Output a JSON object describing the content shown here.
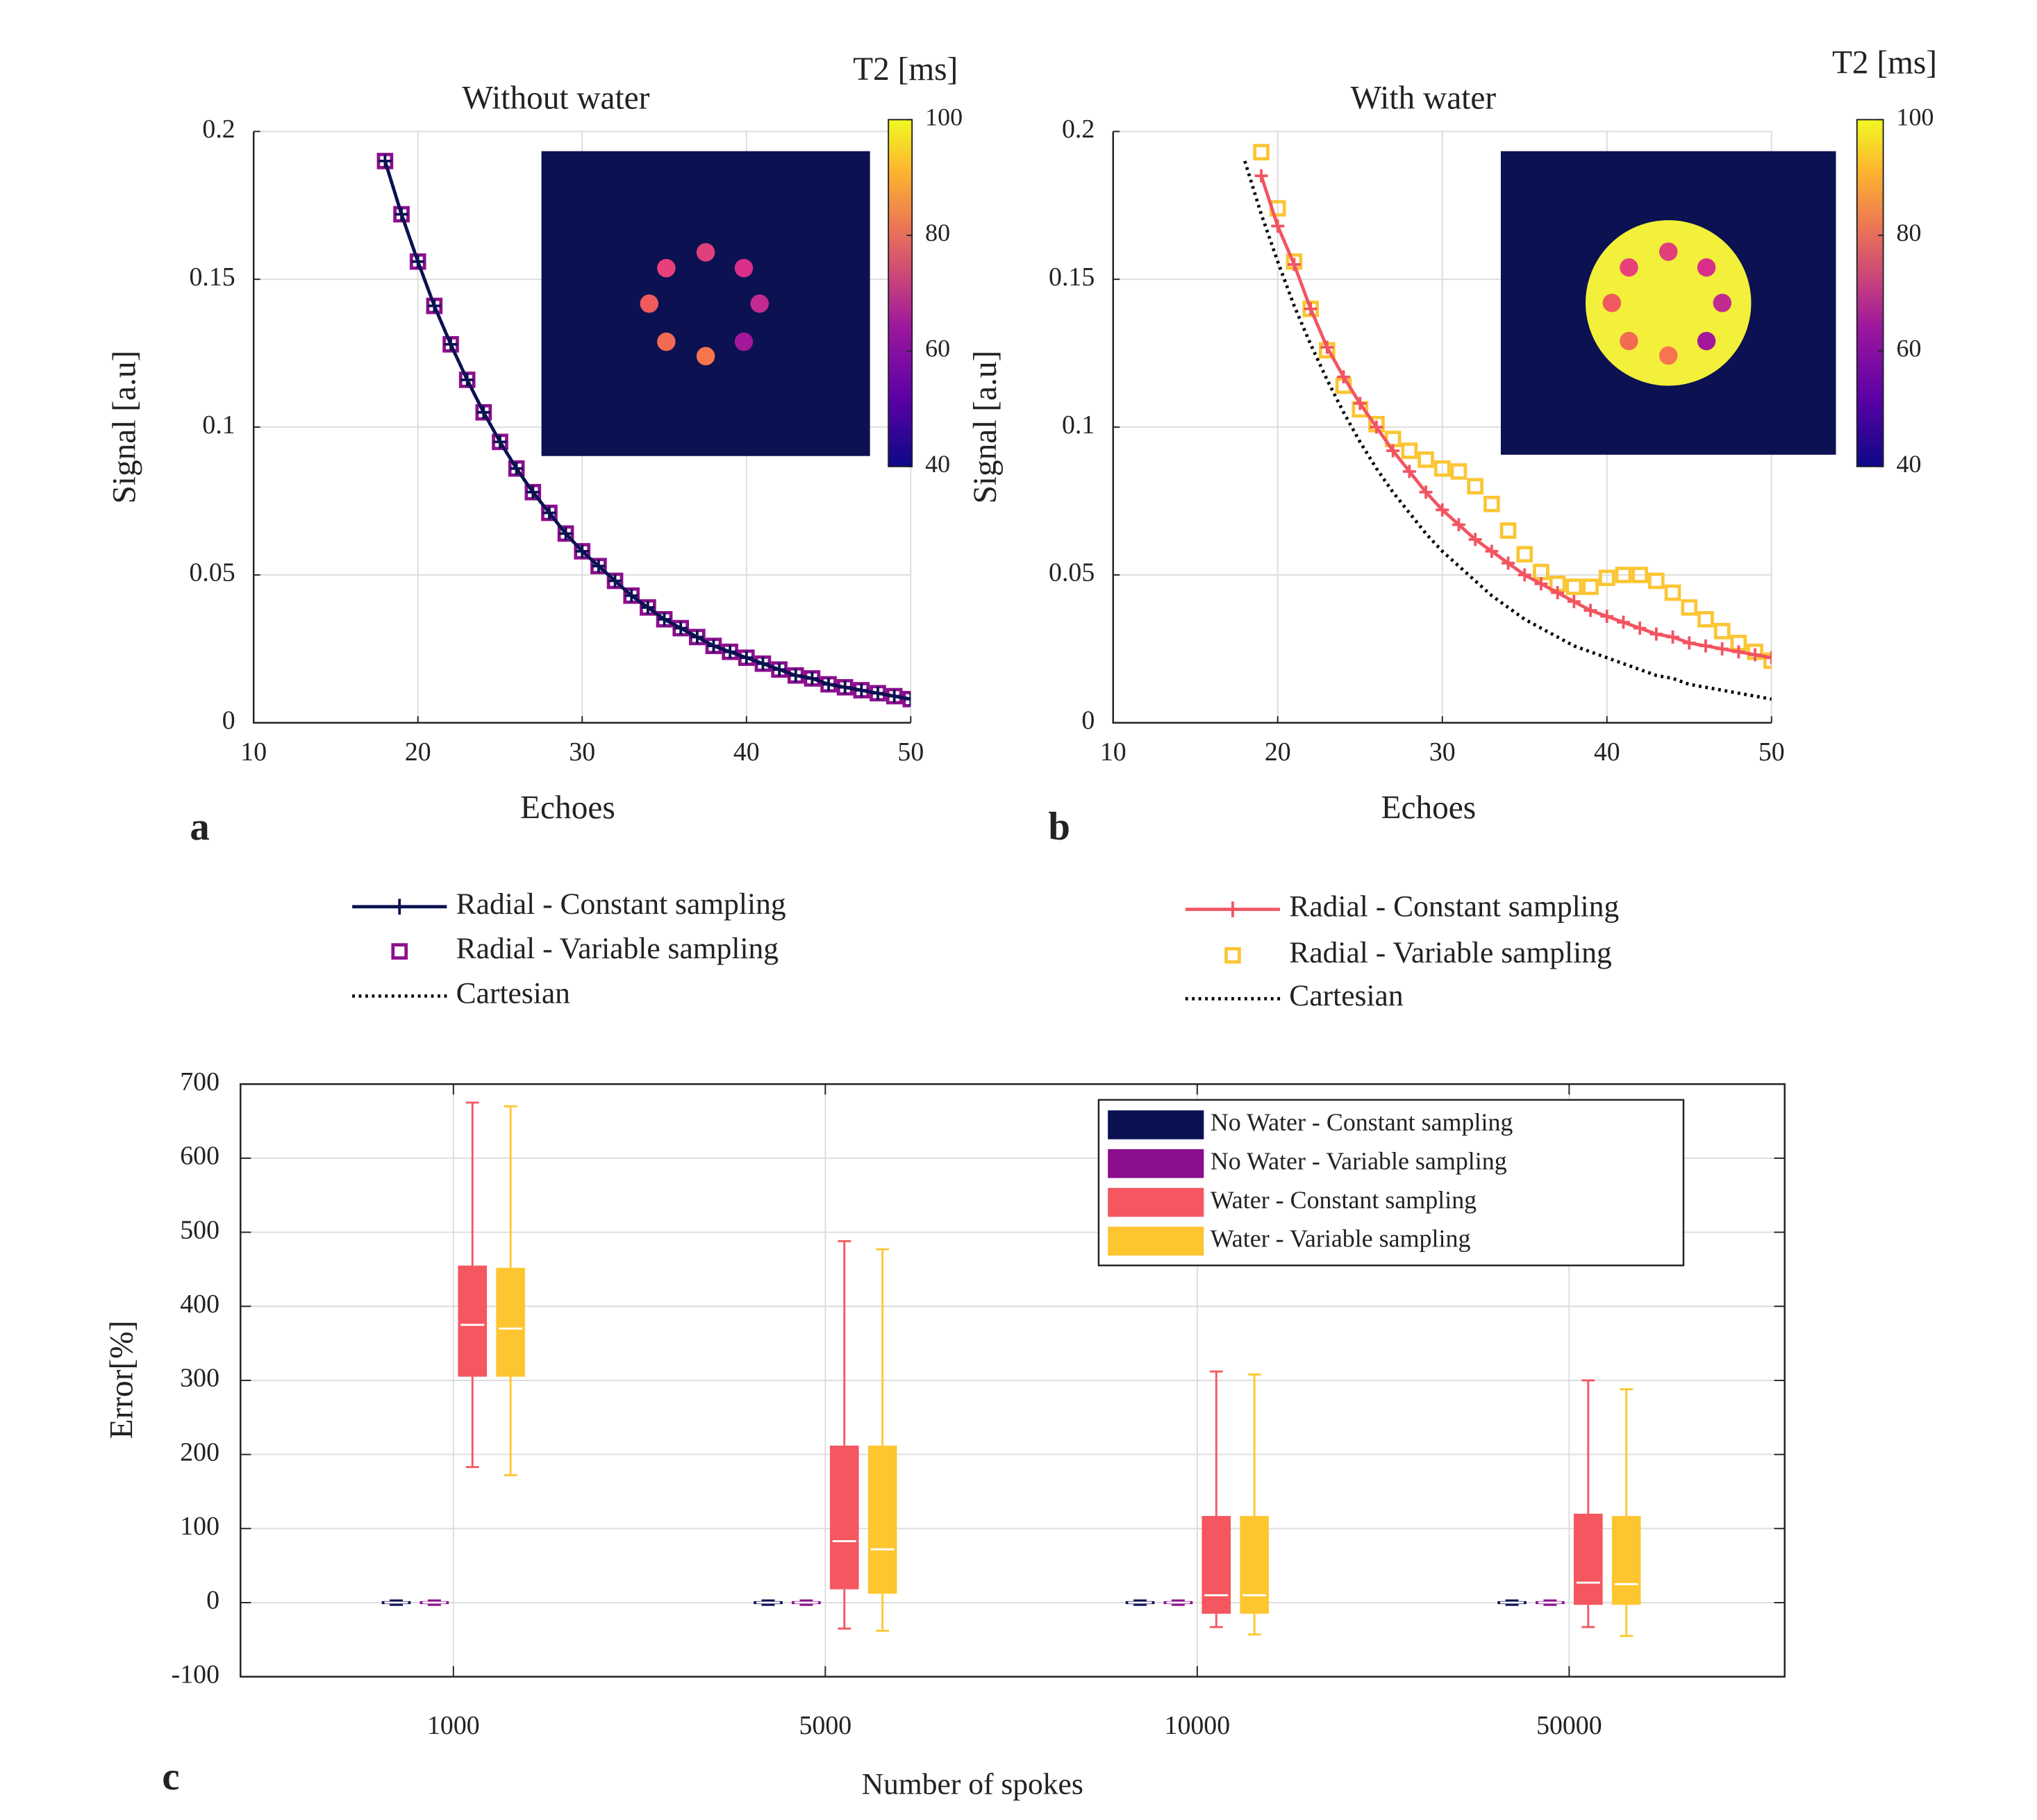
{
  "chart_data": [
    {
      "type": "line",
      "panel": "a",
      "title": "Without water",
      "xlabel": "Echoes",
      "ylabel": "Signal [a.u]",
      "xlim": [
        10,
        50
      ],
      "xticks": [
        10,
        20,
        30,
        40,
        50
      ],
      "ylim": [
        0,
        0.2
      ],
      "yticks": [
        0,
        0.05,
        0.1,
        0.15,
        0.2
      ],
      "grid": true,
      "colorbar": {
        "label": "T2 [ms]",
        "lim": [
          40,
          100
        ],
        "ticks": [
          40,
          60,
          80,
          100
        ]
      },
      "x": [
        18,
        19,
        20,
        21,
        22,
        23,
        24,
        25,
        26,
        27,
        28,
        29,
        30,
        31,
        32,
        33,
        34,
        35,
        36,
        37,
        38,
        39,
        40,
        41,
        42,
        43,
        44,
        45,
        46,
        47,
        48,
        49,
        50
      ],
      "series": [
        {
          "name": "Radial - Constant sampling",
          "color": "#0c1152",
          "line": "solid",
          "marker": "+",
          "values": [
            0.19,
            0.172,
            0.156,
            0.141,
            0.128,
            0.116,
            0.105,
            0.095,
            0.086,
            0.078,
            0.071,
            0.064,
            0.058,
            0.053,
            0.048,
            0.043,
            0.039,
            0.035,
            0.032,
            0.029,
            0.026,
            0.024,
            0.022,
            0.02,
            0.018,
            0.016,
            0.015,
            0.013,
            0.012,
            0.011,
            0.01,
            0.009,
            0.008
          ]
        },
        {
          "name": "Radial - Variable sampling",
          "color": "#8b0f8d",
          "line": "none",
          "marker": "square",
          "values": [
            0.19,
            0.172,
            0.156,
            0.141,
            0.128,
            0.116,
            0.105,
            0.095,
            0.086,
            0.078,
            0.071,
            0.064,
            0.058,
            0.053,
            0.048,
            0.043,
            0.039,
            0.035,
            0.032,
            0.029,
            0.026,
            0.024,
            0.022,
            0.02,
            0.018,
            0.016,
            0.015,
            0.013,
            0.012,
            0.011,
            0.01,
            0.009,
            0.008
          ]
        },
        {
          "name": "Cartesian",
          "color": "#000000",
          "line": "dotted",
          "marker": null,
          "values": [
            0.19,
            0.172,
            0.156,
            0.141,
            0.128,
            0.116,
            0.105,
            0.095,
            0.086,
            0.078,
            0.071,
            0.064,
            0.058,
            0.053,
            0.048,
            0.043,
            0.039,
            0.035,
            0.032,
            0.029,
            0.026,
            0.024,
            0.022,
            0.02,
            0.018,
            0.016,
            0.015,
            0.013,
            0.012,
            0.011,
            0.01,
            0.009,
            0.008
          ]
        }
      ]
    },
    {
      "type": "line",
      "panel": "b",
      "title": "With water",
      "xlabel": "Echoes",
      "ylabel": "Signal [a.u]",
      "xlim": [
        10,
        50
      ],
      "xticks": [
        10,
        20,
        30,
        40,
        50
      ],
      "ylim": [
        0,
        0.2
      ],
      "yticks": [
        0,
        0.05,
        0.1,
        0.15,
        0.2
      ],
      "grid": true,
      "colorbar": {
        "label": "T2 [ms]",
        "lim": [
          40,
          100
        ],
        "ticks": [
          40,
          60,
          80,
          100
        ]
      },
      "x": [
        18,
        19,
        20,
        21,
        22,
        23,
        24,
        25,
        26,
        27,
        28,
        29,
        30,
        31,
        32,
        33,
        34,
        35,
        36,
        37,
        38,
        39,
        40,
        41,
        42,
        43,
        44,
        45,
        46,
        47,
        48,
        49,
        50
      ],
      "series": [
        {
          "name": "Radial - Constant sampling",
          "color": "#f25461",
          "line": "solid",
          "marker": "+",
          "values": [
            null,
            0.185,
            0.168,
            0.155,
            0.14,
            0.127,
            0.117,
            0.108,
            0.1,
            0.092,
            0.085,
            0.078,
            0.072,
            0.067,
            0.062,
            0.058,
            0.054,
            0.05,
            0.047,
            0.044,
            0.041,
            0.038,
            0.036,
            0.034,
            0.032,
            0.03,
            0.029,
            0.027,
            0.026,
            0.025,
            0.024,
            0.023,
            0.022
          ]
        },
        {
          "name": "Radial - Variable sampling",
          "color": "#fbc534",
          "line": "none",
          "marker": "square",
          "values": [
            null,
            0.193,
            0.174,
            0.156,
            0.14,
            0.126,
            0.114,
            0.106,
            0.101,
            0.096,
            0.092,
            0.089,
            0.086,
            0.085,
            0.08,
            0.074,
            0.065,
            0.057,
            0.051,
            0.047,
            0.046,
            0.046,
            0.049,
            0.05,
            0.05,
            0.048,
            0.044,
            0.039,
            0.035,
            0.031,
            0.027,
            0.024,
            0.021
          ]
        },
        {
          "name": "Cartesian",
          "color": "#000000",
          "line": "dotted",
          "marker": null,
          "values": [
            0.19,
            0.172,
            0.156,
            0.141,
            0.128,
            0.116,
            0.105,
            0.095,
            0.086,
            0.078,
            0.071,
            0.064,
            0.058,
            0.053,
            0.048,
            0.043,
            0.039,
            0.035,
            0.032,
            0.029,
            0.026,
            0.024,
            0.022,
            0.02,
            0.018,
            0.016,
            0.015,
            0.013,
            0.012,
            0.011,
            0.01,
            0.009,
            0.008
          ]
        }
      ]
    },
    {
      "type": "box",
      "panel": "c",
      "xlabel": "Number of spokes",
      "ylabel": "Error[%]",
      "ylim": [
        -100,
        700
      ],
      "yticks": [
        -100,
        0,
        100,
        200,
        300,
        400,
        500,
        600,
        700
      ],
      "grid": true,
      "legend": "northeast",
      "categories": [
        "1000",
        "5000",
        "10000",
        "50000"
      ],
      "series": [
        {
          "name": "No Water - Constant sampling",
          "color": "#0c1152",
          "low": [
            -3,
            -3,
            -3,
            -3
          ],
          "q1": [
            -2,
            -2,
            -2,
            -2
          ],
          "median": [
            0,
            0,
            0,
            0
          ],
          "q3": [
            2,
            2,
            2,
            2
          ],
          "high": [
            3,
            3,
            3,
            3
          ]
        },
        {
          "name": "No Water - Variable sampling",
          "color": "#8b0f8d",
          "low": [
            -3,
            -3,
            -3,
            -3
          ],
          "q1": [
            -2,
            -2,
            -2,
            -2
          ],
          "median": [
            0,
            0,
            0,
            0
          ],
          "q3": [
            2,
            2,
            2,
            2
          ],
          "high": [
            3,
            3,
            3,
            3
          ]
        },
        {
          "name": "Water - Constant sampling",
          "color": "#f4575f",
          "low": [
            183,
            -35,
            -33,
            -33
          ],
          "q1": [
            305,
            18,
            -15,
            -3
          ],
          "median": [
            375,
            83,
            10,
            27
          ],
          "q3": [
            455,
            212,
            117,
            120
          ],
          "high": [
            675,
            488,
            312,
            300
          ]
        },
        {
          "name": "Water - Variable sampling",
          "color": "#fdc631",
          "low": [
            172,
            -38,
            -43,
            -45
          ],
          "q1": [
            305,
            12,
            -15,
            -3
          ],
          "median": [
            370,
            72,
            10,
            25
          ],
          "q3": [
            452,
            212,
            117,
            117
          ],
          "high": [
            670,
            477,
            308,
            288
          ]
        }
      ]
    }
  ]
}
